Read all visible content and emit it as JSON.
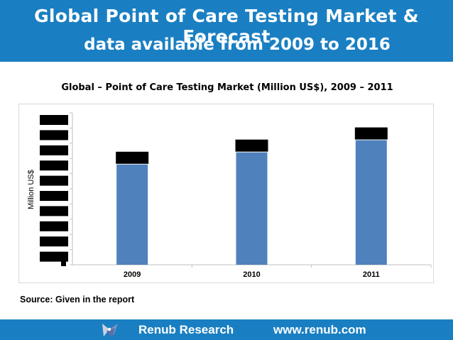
{
  "header": {
    "title_line1": "Global Point of Care Testing Market & Forecast",
    "title_line2": "data available from 2009  to 2016"
  },
  "chart_data": {
    "type": "bar",
    "title": "Global – Point of Care Testing Market (Million US$), 2009 – 2011",
    "xlabel": "",
    "ylabel": "Million US$",
    "categories": [
      "2009",
      "2010",
      "2011"
    ],
    "values": [
      0.66,
      0.74,
      0.82
    ],
    "ylim": [
      0,
      1
    ],
    "notes": "Y-axis tick labels and bar value labels are redacted with black boxes; values are relative bar heights.",
    "bar_color": "#4f81bd",
    "grid": false
  },
  "source": "Source: Given in the report",
  "footer": {
    "brand": "Renub Research",
    "website": "www.renub.com"
  },
  "colors": {
    "header_bg": "#1a7fc2",
    "bar": "#4f81bd",
    "redaction": "#000000"
  }
}
